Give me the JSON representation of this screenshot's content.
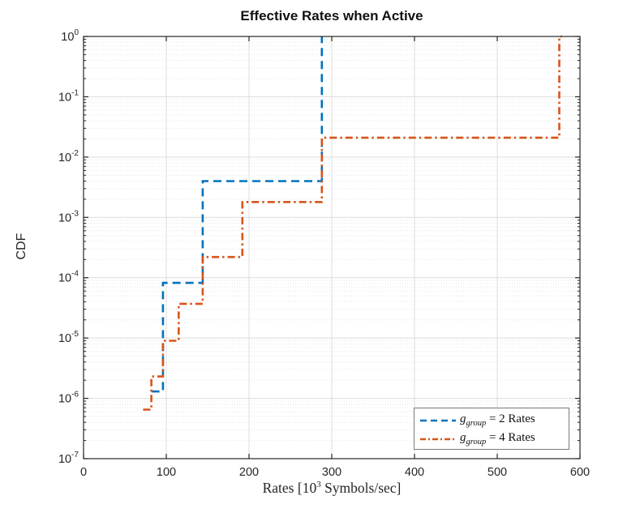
{
  "chart_data": {
    "type": "line",
    "subtype": "step-cdf",
    "title": "Effective Rates when Active",
    "xlabel": "Rates [10^3 Symbols/sec]",
    "xlabel_parts": {
      "prefix": "Rates [10",
      "sup": "3",
      "suffix": " Symbols/sec]"
    },
    "ylabel": "CDF",
    "x_axis": {
      "min": 0,
      "max": 600,
      "ticks": [
        0,
        100,
        200,
        300,
        400,
        500,
        600
      ]
    },
    "y_axis": {
      "scale": "log",
      "base": 10,
      "min": 1e-07,
      "max": 1,
      "tick_exponents": [
        0,
        -1,
        -2,
        -3,
        -4,
        -5,
        -6,
        -7
      ]
    },
    "grid": {
      "major": true,
      "y_minor_log": true,
      "major_color": "#DCDCDC",
      "minor_color": "#E6E6E6",
      "axes_color": "#262626"
    },
    "legend": {
      "position": "bottom-right",
      "entries": [
        {
          "var": "g",
          "sub": "group",
          "rest": " = 2 Rates",
          "color": "#0072BD",
          "style": "dashed"
        },
        {
          "var": "g",
          "sub": "group",
          "rest": " = 4 Rates",
          "color": "#D95319",
          "style": "dash-dot"
        }
      ]
    },
    "series": [
      {
        "name": "g_group = 2 Rates",
        "color": "#0072BD",
        "line_style": "dashed",
        "line_width": 2.6,
        "points": [
          [
            82,
            1.3e-06
          ],
          [
            96,
            1.3e-06
          ],
          [
            96,
            8.2e-05
          ],
          [
            144,
            8.2e-05
          ],
          [
            144,
            0.004
          ],
          [
            288,
            0.004
          ],
          [
            288,
            1.0
          ]
        ]
      },
      {
        "name": "g_group = 4 Rates",
        "color": "#D95319",
        "line_style": "dash-dot",
        "line_width": 2.6,
        "points": [
          [
            72,
            6.5e-07
          ],
          [
            82,
            6.5e-07
          ],
          [
            82,
            2.3e-06
          ],
          [
            96,
            2.3e-06
          ],
          [
            96,
            9e-06
          ],
          [
            115,
            9e-06
          ],
          [
            115,
            3.7e-05
          ],
          [
            144,
            3.7e-05
          ],
          [
            144,
            0.00022
          ],
          [
            192,
            0.00022
          ],
          [
            192,
            0.0018
          ],
          [
            288,
            0.0018
          ],
          [
            288,
            0.021
          ],
          [
            575,
            0.021
          ],
          [
            575,
            1.0
          ],
          [
            578,
            1.0
          ]
        ]
      }
    ]
  }
}
